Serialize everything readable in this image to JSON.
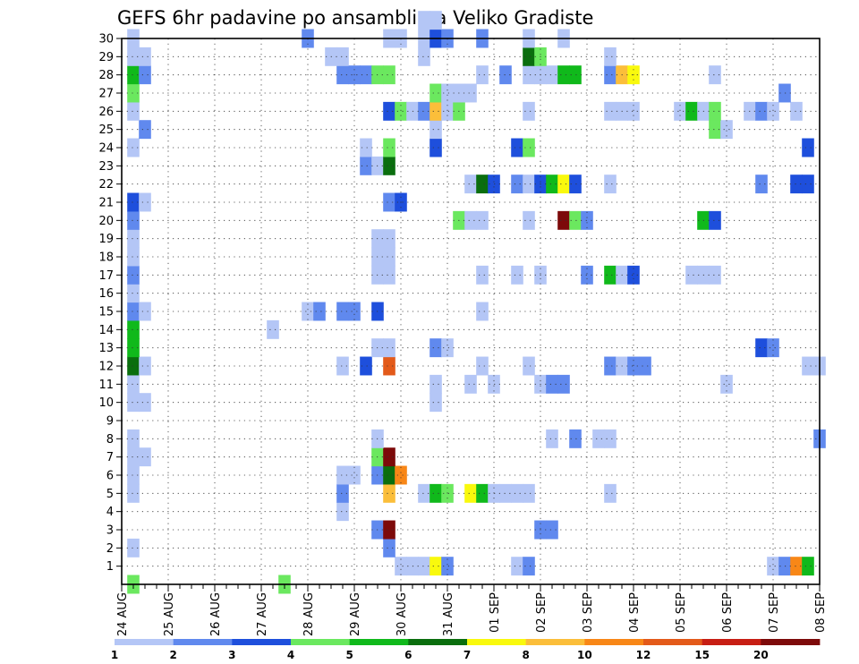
{
  "chart_data": {
    "type": "heatmap",
    "title": "GEFS 6hr padavine po ansamblima Veliko Gradiste",
    "xlabel": "",
    "ylabel": "",
    "grid": true,
    "x_tick_labels": [
      "24 AUG",
      "25 AUG",
      "26 AUG",
      "27 AUG",
      "28 AUG",
      "29 AUG",
      "30 AUG",
      "31 AUG",
      "01 SEP",
      "02 SEP",
      "03 SEP",
      "04 SEP",
      "05 SEP",
      "06 SEP",
      "07 SEP",
      "08 SEP"
    ],
    "y_tick_labels": [
      "1",
      "2",
      "3",
      "4",
      "5",
      "6",
      "7",
      "8",
      "9",
      "10",
      "11",
      "12",
      "13",
      "14",
      "15",
      "16",
      "17",
      "18",
      "19",
      "20",
      "21",
      "22",
      "23",
      "24",
      "25",
      "26",
      "27",
      "28",
      "29",
      "30"
    ],
    "x_range_steps": [
      0,
      60
    ],
    "y_range_members": [
      0,
      30
    ],
    "colorbar": {
      "labels": [
        "1",
        "2",
        "3",
        "4",
        "5",
        "6",
        "7",
        "8",
        "10",
        "12",
        "15",
        "20"
      ],
      "colors": [
        "#b4c6f6",
        "#6089ee",
        "#1e4fdc",
        "#6be85f",
        "#10b91b",
        "#0a6e0e",
        "#f9f90d",
        "#fbbe3a",
        "#f88717",
        "#e35a1a",
        "#c71e14",
        "#7d0a0a"
      ]
    },
    "colors": [
      "#b4c6f6",
      "#6089ee",
      "#1e4fdc",
      "#6be85f",
      "#10b91b",
      "#0a6e0e",
      "#f9f90d",
      "#fbbe3a",
      "#f88717",
      "#e35a1a",
      "#c71e14",
      "#7d0a0a"
    ],
    "note_cells": "each cell: [time_step (6h from 24 AUG 00Z), ensemble member (1-30), color class index 0-11]",
    "cells": [
      [
        1,
        0,
        3
      ],
      [
        14,
        0,
        3
      ],
      [
        24,
        1,
        0
      ],
      [
        25,
        1,
        0
      ],
      [
        26,
        1,
        0
      ],
      [
        27,
        1,
        6
      ],
      [
        28,
        1,
        1
      ],
      [
        34,
        1,
        0
      ],
      [
        35,
        1,
        1
      ],
      [
        56,
        1,
        0
      ],
      [
        57,
        1,
        1
      ],
      [
        58,
        1,
        8
      ],
      [
        59,
        1,
        4
      ],
      [
        1,
        2,
        0
      ],
      [
        23,
        2,
        1
      ],
      [
        22,
        3,
        1
      ],
      [
        23,
        3,
        11
      ],
      [
        36,
        3,
        1
      ],
      [
        37,
        3,
        1
      ],
      [
        19,
        4,
        0
      ],
      [
        1,
        5,
        0
      ],
      [
        19,
        5,
        1
      ],
      [
        23,
        5,
        7
      ],
      [
        26,
        5,
        0
      ],
      [
        27,
        5,
        4
      ],
      [
        28,
        5,
        3
      ],
      [
        30,
        5,
        6
      ],
      [
        31,
        5,
        4
      ],
      [
        32,
        5,
        0
      ],
      [
        33,
        5,
        0
      ],
      [
        34,
        5,
        0
      ],
      [
        35,
        5,
        0
      ],
      [
        42,
        5,
        0
      ],
      [
        1,
        6,
        0
      ],
      [
        19,
        6,
        0
      ],
      [
        20,
        6,
        0
      ],
      [
        22,
        6,
        1
      ],
      [
        23,
        6,
        5
      ],
      [
        24,
        6,
        8
      ],
      [
        1,
        7,
        0
      ],
      [
        2,
        7,
        0
      ],
      [
        22,
        7,
        3
      ],
      [
        23,
        7,
        11
      ],
      [
        1,
        8,
        0
      ],
      [
        22,
        8,
        0
      ],
      [
        37,
        8,
        0
      ],
      [
        39,
        8,
        1
      ],
      [
        41,
        8,
        0
      ],
      [
        42,
        8,
        0
      ],
      [
        60,
        8,
        1
      ],
      [
        1,
        10,
        0
      ],
      [
        2,
        10,
        0
      ],
      [
        27,
        10,
        0
      ],
      [
        1,
        11,
        0
      ],
      [
        27,
        11,
        0
      ],
      [
        30,
        11,
        0
      ],
      [
        32,
        11,
        0
      ],
      [
        36,
        11,
        0
      ],
      [
        37,
        11,
        1
      ],
      [
        38,
        11,
        1
      ],
      [
        52,
        11,
        0
      ],
      [
        1,
        12,
        5
      ],
      [
        2,
        12,
        0
      ],
      [
        19,
        12,
        0
      ],
      [
        21,
        12,
        2
      ],
      [
        23,
        12,
        9
      ],
      [
        31,
        12,
        0
      ],
      [
        35,
        12,
        0
      ],
      [
        42,
        12,
        1
      ],
      [
        43,
        12,
        0
      ],
      [
        44,
        12,
        1
      ],
      [
        45,
        12,
        1
      ],
      [
        59,
        12,
        0
      ],
      [
        60,
        12,
        0
      ],
      [
        1,
        13,
        4
      ],
      [
        22,
        13,
        0
      ],
      [
        23,
        13,
        0
      ],
      [
        27,
        13,
        1
      ],
      [
        28,
        13,
        0
      ],
      [
        55,
        13,
        2
      ],
      [
        56,
        13,
        1
      ],
      [
        1,
        14,
        4
      ],
      [
        13,
        14,
        0
      ],
      [
        1,
        15,
        1
      ],
      [
        2,
        15,
        0
      ],
      [
        16,
        15,
        0
      ],
      [
        17,
        15,
        1
      ],
      [
        19,
        15,
        1
      ],
      [
        20,
        15,
        1
      ],
      [
        22,
        15,
        2
      ],
      [
        31,
        15,
        0
      ],
      [
        1,
        16,
        0
      ],
      [
        1,
        17,
        1
      ],
      [
        22,
        17,
        0
      ],
      [
        23,
        17,
        0
      ],
      [
        31,
        17,
        0
      ],
      [
        34,
        17,
        0
      ],
      [
        36,
        17,
        0
      ],
      [
        40,
        17,
        1
      ],
      [
        42,
        17,
        4
      ],
      [
        43,
        17,
        0
      ],
      [
        44,
        17,
        2
      ],
      [
        49,
        17,
        0
      ],
      [
        50,
        17,
        0
      ],
      [
        51,
        17,
        0
      ],
      [
        1,
        18,
        0
      ],
      [
        22,
        18,
        0
      ],
      [
        23,
        18,
        0
      ],
      [
        1,
        19,
        0
      ],
      [
        22,
        19,
        0
      ],
      [
        23,
        19,
        0
      ],
      [
        1,
        20,
        1
      ],
      [
        29,
        20,
        3
      ],
      [
        30,
        20,
        0
      ],
      [
        31,
        20,
        0
      ],
      [
        35,
        20,
        0
      ],
      [
        38,
        20,
        11
      ],
      [
        39,
        20,
        3
      ],
      [
        40,
        20,
        1
      ],
      [
        50,
        20,
        4
      ],
      [
        51,
        20,
        2
      ],
      [
        1,
        21,
        2
      ],
      [
        2,
        21,
        0
      ],
      [
        23,
        21,
        1
      ],
      [
        24,
        21,
        2
      ],
      [
        30,
        22,
        0
      ],
      [
        31,
        22,
        5
      ],
      [
        32,
        22,
        2
      ],
      [
        34,
        22,
        1
      ],
      [
        35,
        22,
        0
      ],
      [
        36,
        22,
        2
      ],
      [
        37,
        22,
        4
      ],
      [
        38,
        22,
        6
      ],
      [
        39,
        22,
        2
      ],
      [
        42,
        22,
        0
      ],
      [
        55,
        22,
        1
      ],
      [
        58,
        22,
        2
      ],
      [
        59,
        22,
        2
      ],
      [
        21,
        23,
        1
      ],
      [
        22,
        23,
        0
      ],
      [
        23,
        23,
        5
      ],
      [
        1,
        24,
        0
      ],
      [
        21,
        24,
        0
      ],
      [
        23,
        24,
        3
      ],
      [
        27,
        24,
        2
      ],
      [
        34,
        24,
        2
      ],
      [
        35,
        24,
        3
      ],
      [
        59,
        24,
        2
      ],
      [
        2,
        25,
        1
      ],
      [
        27,
        25,
        0
      ],
      [
        51,
        25,
        3
      ],
      [
        52,
        25,
        0
      ],
      [
        1,
        26,
        0
      ],
      [
        23,
        26,
        2
      ],
      [
        24,
        26,
        3
      ],
      [
        25,
        26,
        0
      ],
      [
        26,
        26,
        1
      ],
      [
        27,
        26,
        7
      ],
      [
        28,
        26,
        0
      ],
      [
        29,
        26,
        3
      ],
      [
        35,
        26,
        0
      ],
      [
        42,
        26,
        0
      ],
      [
        43,
        26,
        0
      ],
      [
        44,
        26,
        0
      ],
      [
        48,
        26,
        0
      ],
      [
        49,
        26,
        4
      ],
      [
        50,
        26,
        0
      ],
      [
        51,
        26,
        3
      ],
      [
        54,
        26,
        0
      ],
      [
        55,
        26,
        1
      ],
      [
        56,
        26,
        0
      ],
      [
        58,
        26,
        0
      ],
      [
        1,
        27,
        3
      ],
      [
        27,
        27,
        3
      ],
      [
        28,
        27,
        0
      ],
      [
        29,
        27,
        0
      ],
      [
        30,
        27,
        0
      ],
      [
        57,
        27,
        1
      ],
      [
        1,
        28,
        4
      ],
      [
        2,
        28,
        1
      ],
      [
        19,
        28,
        1
      ],
      [
        20,
        28,
        1
      ],
      [
        21,
        28,
        1
      ],
      [
        22,
        28,
        3
      ],
      [
        23,
        28,
        3
      ],
      [
        31,
        28,
        0
      ],
      [
        33,
        28,
        1
      ],
      [
        35,
        28,
        0
      ],
      [
        36,
        28,
        0
      ],
      [
        37,
        28,
        0
      ],
      [
        38,
        28,
        4
      ],
      [
        39,
        28,
        4
      ],
      [
        42,
        28,
        1
      ],
      [
        43,
        28,
        7
      ],
      [
        44,
        28,
        6
      ],
      [
        51,
        28,
        0
      ],
      [
        1,
        29,
        0
      ],
      [
        2,
        29,
        0
      ],
      [
        18,
        29,
        0
      ],
      [
        19,
        29,
        0
      ],
      [
        26,
        29,
        0
      ],
      [
        35,
        29,
        5
      ],
      [
        36,
        29,
        3
      ],
      [
        42,
        29,
        0
      ],
      [
        1,
        30,
        0
      ],
      [
        16,
        30,
        1
      ],
      [
        23,
        30,
        0
      ],
      [
        24,
        30,
        0
      ],
      [
        26,
        30,
        0
      ],
      [
        27,
        30,
        2
      ],
      [
        28,
        30,
        1
      ],
      [
        31,
        30,
        1
      ],
      [
        35,
        30,
        0
      ],
      [
        38,
        30,
        0
      ],
      [
        26,
        31,
        0
      ],
      [
        27,
        31,
        0
      ]
    ]
  }
}
